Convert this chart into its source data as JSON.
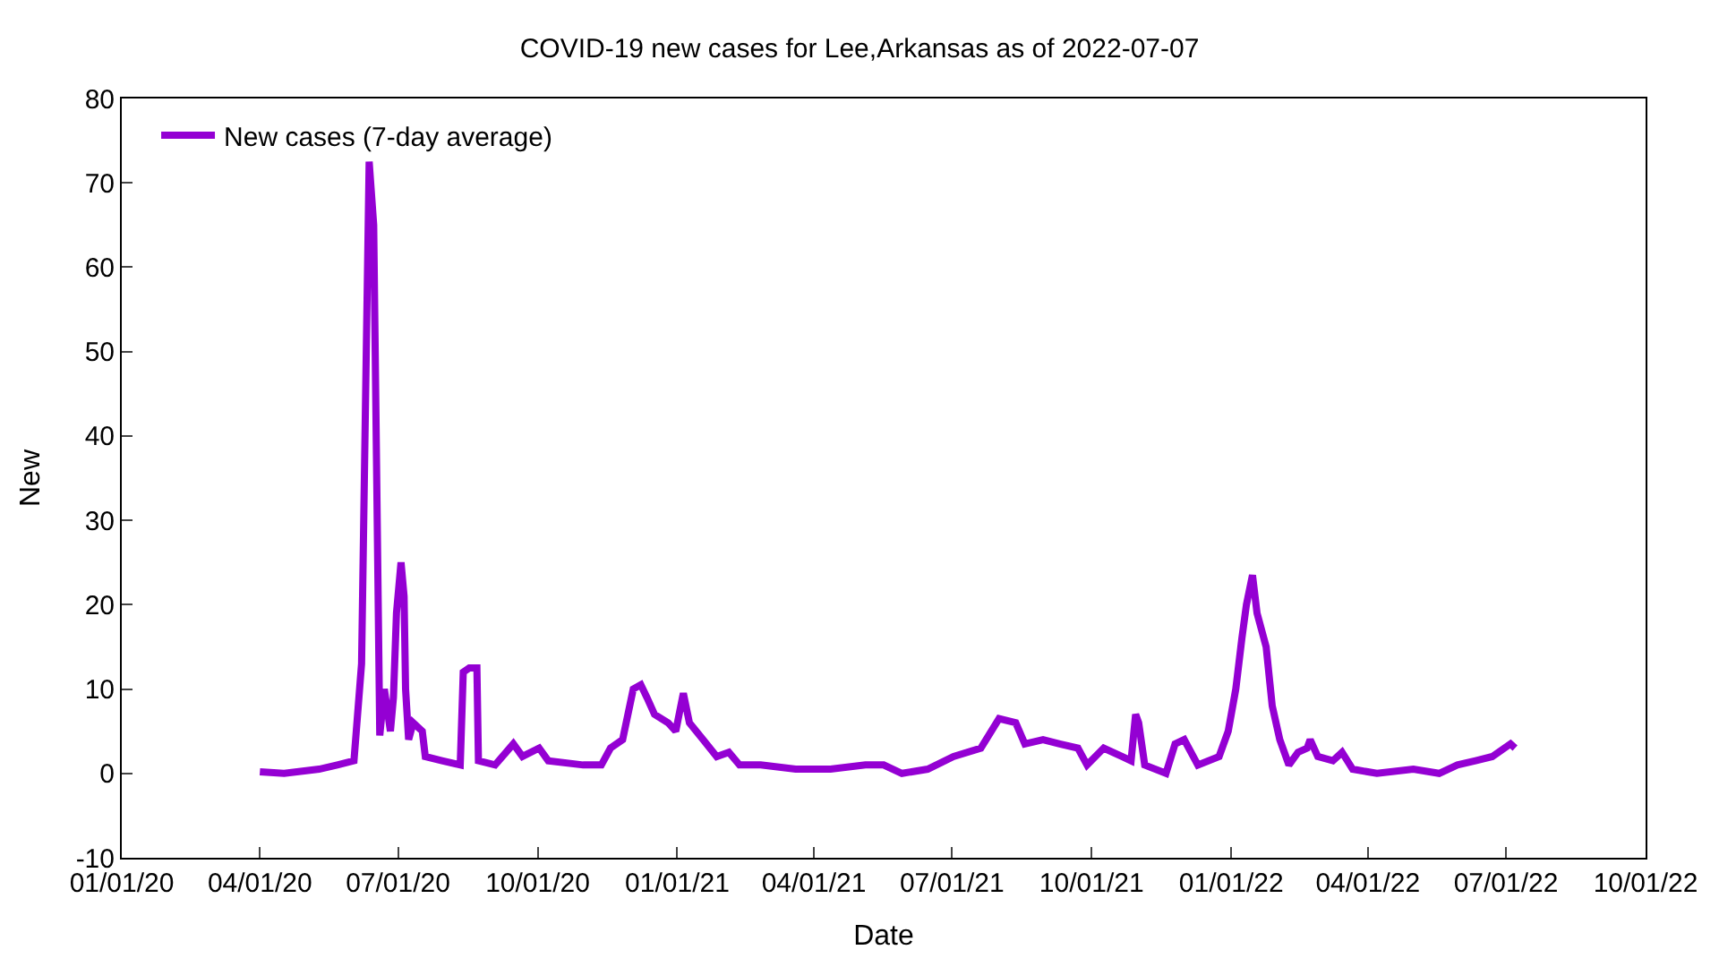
{
  "chart_data": {
    "type": "line",
    "title": "COVID-19 new cases for Lee,Arkansas as of 2022-07-07",
    "xlabel": "Date",
    "ylabel": "New",
    "x": [
      "2020-04-01",
      "2020-04-17",
      "2020-05-10",
      "2020-05-22",
      "2020-06-02",
      "2020-06-07",
      "2020-06-12",
      "2020-06-15",
      "2020-06-19",
      "2020-06-22",
      "2020-06-26",
      "2020-06-28",
      "2020-06-30",
      "2020-07-03",
      "2020-07-05",
      "2020-07-06",
      "2020-07-08",
      "2020-07-11",
      "2020-07-17",
      "2020-07-19",
      "2020-07-30",
      "2020-08-11",
      "2020-08-13",
      "2020-08-17",
      "2020-08-22",
      "2020-08-23",
      "2020-09-03",
      "2020-09-15",
      "2020-09-21",
      "2020-10-02",
      "2020-10-08",
      "2020-10-31",
      "2020-11-12",
      "2020-11-18",
      "2020-11-26",
      "2020-12-03",
      "2020-12-08",
      "2020-12-12",
      "2020-12-17",
      "2020-12-26",
      "2020-12-31",
      "2021-01-05",
      "2021-01-09",
      "2021-01-18",
      "2021-01-27",
      "2021-02-04",
      "2021-02-11",
      "2021-02-25",
      "2021-03-20",
      "2021-04-12",
      "2021-05-05",
      "2021-05-17",
      "2021-05-29",
      "2021-06-15",
      "2021-07-02",
      "2021-07-20",
      "2021-08-01",
      "2021-08-12",
      "2021-08-18",
      "2021-08-30",
      "2021-09-10",
      "2021-09-22",
      "2021-09-28",
      "2021-10-09",
      "2021-10-21",
      "2021-10-27",
      "2021-10-30",
      "2021-11-01",
      "2021-11-05",
      "2021-11-19",
      "2021-11-25",
      "2021-12-01",
      "2021-12-10",
      "2021-12-24",
      "2021-12-30",
      "2022-01-04",
      "2022-01-08",
      "2022-01-11",
      "2022-01-15",
      "2022-01-18",
      "2022-01-24",
      "2022-01-28",
      "2022-02-02",
      "2022-02-08",
      "2022-02-14",
      "2022-02-20",
      "2022-02-22",
      "2022-02-27",
      "2022-03-09",
      "2022-03-15",
      "2022-03-22",
      "2022-04-07",
      "2022-05-01",
      "2022-05-18",
      "2022-05-30",
      "2022-06-11",
      "2022-06-22",
      "2022-07-04",
      "2022-07-07"
    ],
    "series": [
      {
        "name": "New cases (7-day average)",
        "color": "#9400d3",
        "values": [
          0.2,
          0,
          0.5,
          1,
          1.5,
          13,
          72.5,
          65,
          4.5,
          10,
          5,
          9,
          19,
          25,
          21,
          10,
          4,
          6,
          5,
          2,
          1.5,
          1,
          12,
          12.5,
          12.5,
          1.5,
          1,
          3.5,
          2,
          3,
          1.5,
          1,
          1,
          3,
          4,
          10,
          10.5,
          9,
          7,
          6,
          5,
          9.5,
          6,
          4,
          2,
          2.5,
          1,
          1,
          0.5,
          0.5,
          1,
          1,
          0,
          0.5,
          2,
          3,
          6.5,
          6,
          3.5,
          4,
          3.5,
          3,
          1,
          3,
          2,
          1.5,
          7,
          6,
          1,
          0,
          3.5,
          4,
          1,
          2,
          5,
          10,
          16,
          20,
          23.5,
          19,
          15,
          8,
          4,
          1,
          2.5,
          3,
          4,
          2,
          1.5,
          2.5,
          0.5,
          0,
          0.5,
          0,
          1,
          1.5,
          2,
          3.5,
          3
        ]
      }
    ],
    "xlim": [
      "2020-01-01",
      "2022-10-01"
    ],
    "xticks": [
      {
        "value": "2020-01-01",
        "label": "01/01/20"
      },
      {
        "value": "2020-04-01",
        "label": "04/01/20"
      },
      {
        "value": "2020-07-01",
        "label": "07/01/20"
      },
      {
        "value": "2020-10-01",
        "label": "10/01/20"
      },
      {
        "value": "2021-01-01",
        "label": "01/01/21"
      },
      {
        "value": "2021-04-01",
        "label": "04/01/21"
      },
      {
        "value": "2021-07-01",
        "label": "07/01/21"
      },
      {
        "value": "2021-10-01",
        "label": "10/01/21"
      },
      {
        "value": "2022-01-01",
        "label": "01/01/22"
      },
      {
        "value": "2022-04-01",
        "label": "04/01/22"
      },
      {
        "value": "2022-07-01",
        "label": "07/01/22"
      },
      {
        "value": "2022-10-01",
        "label": "10/01/22"
      }
    ],
    "ylim": [
      -10,
      80
    ],
    "yticks": [
      -10,
      0,
      10,
      20,
      30,
      40,
      50,
      60,
      70,
      80
    ],
    "legend": "top left",
    "marker": "none",
    "line_style": "solid"
  }
}
